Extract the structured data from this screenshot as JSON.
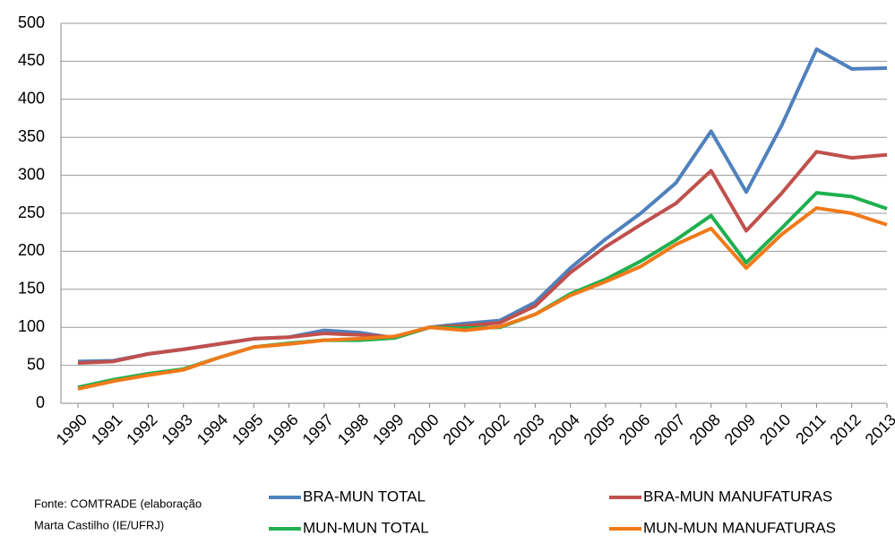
{
  "chart_data": {
    "type": "line",
    "x": [
      "1990",
      "1991",
      "1992",
      "1993",
      "1994",
      "1995",
      "1996",
      "1997",
      "1998",
      "1999",
      "2000",
      "2001",
      "2002",
      "2003",
      "2004",
      "2005",
      "2006",
      "2007",
      "2008",
      "2009",
      "2010",
      "2011",
      "2012",
      "2013"
    ],
    "series": [
      {
        "name": "BRA-MUN TOTAL",
        "color": "#4f81bd",
        "values": [
          55,
          56,
          65,
          71,
          78,
          85,
          87,
          96,
          93,
          86,
          100,
          105,
          109,
          133,
          178,
          216,
          250,
          290,
          358,
          278,
          365,
          466,
          440,
          441
        ]
      },
      {
        "name": "BRA-MUN MANUFATURAS",
        "color": "#c0504d",
        "values": [
          53,
          55,
          65,
          71,
          78,
          85,
          87,
          92,
          90,
          87,
          100,
          102,
          106,
          128,
          172,
          206,
          235,
          263,
          306,
          227,
          276,
          331,
          323,
          327
        ]
      },
      {
        "name": "MUN-MUN TOTAL",
        "color": "#1fb04f",
        "values": [
          21,
          31,
          39,
          45,
          60,
          74,
          79,
          83,
          83,
          86,
          100,
          99,
          100,
          117,
          144,
          163,
          187,
          215,
          247,
          185,
          230,
          277,
          272,
          256
        ]
      },
      {
        "name": "MUN-MUN MANUFATURAS",
        "color": "#f07a1a",
        "values": [
          19,
          29,
          37,
          44,
          60,
          74,
          78,
          83,
          85,
          88,
          100,
          96,
          101,
          117,
          142,
          160,
          180,
          209,
          230,
          178,
          222,
          257,
          250,
          235
        ]
      }
    ],
    "ylim": [
      0,
      500
    ],
    "yticks": [
      0,
      50,
      100,
      150,
      200,
      250,
      300,
      350,
      400,
      450,
      500
    ],
    "grid": true,
    "source": [
      "Fonte: COMTRADE (elaboração",
      "Marta Castilho (IE/UFRJ)"
    ]
  }
}
